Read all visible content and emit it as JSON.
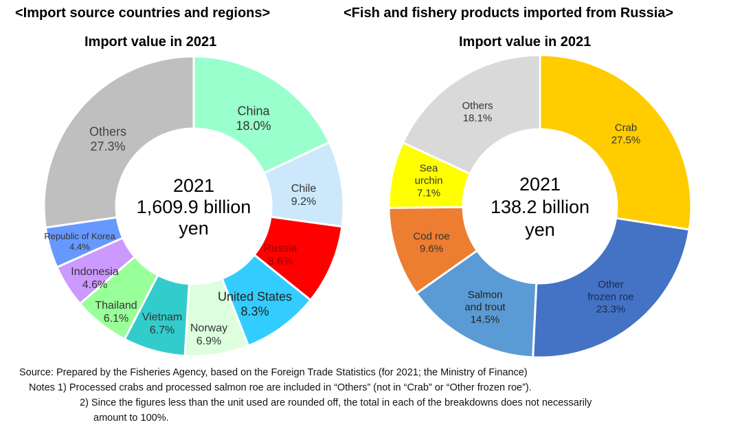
{
  "chart_data": [
    {
      "type": "pie",
      "donut": true,
      "title": "<Import source countries and regions>",
      "subtitle": "Import value in 2021",
      "center_label": [
        "2021",
        "1,609.9 billion",
        "yen"
      ],
      "slices": [
        {
          "label": "China",
          "value": 18.0,
          "value_label": "18.0%",
          "color": "#99FFCC"
        },
        {
          "label": "Chile",
          "value": 9.2,
          "value_label": "9.2%",
          "color": "#CCE8FA"
        },
        {
          "label": "Russia",
          "value": 8.6,
          "value_label": "8.6%",
          "color": "#FF0000"
        },
        {
          "label": "United States",
          "value": 8.3,
          "value_label": "8.3%",
          "color": "#33CCFF"
        },
        {
          "label": "Norway",
          "value": 6.9,
          "value_label": "6.9%",
          "color": "#DDFFDD"
        },
        {
          "label": "Vietnam",
          "value": 6.7,
          "value_label": "6.7%",
          "color": "#33CCCC"
        },
        {
          "label": "Thailand",
          "value": 6.1,
          "value_label": "6.1%",
          "color": "#99FF99"
        },
        {
          "label": "Indonesia",
          "value": 4.6,
          "value_label": "4.6%",
          "color": "#CC99FF"
        },
        {
          "label": "Republic of Korea",
          "value": 4.4,
          "value_label": "4.4%",
          "color": "#6699FF"
        },
        {
          "label": "Others",
          "value": 27.3,
          "value_label": "27.3%",
          "color": "#BFBFBF"
        }
      ]
    },
    {
      "type": "pie",
      "donut": true,
      "title": "<Fish and fishery products imported from Russia>",
      "subtitle": "Import value in 2021",
      "center_label": [
        "2021",
        "138.2 billion",
        "yen"
      ],
      "slices": [
        {
          "label": "Crab",
          "value": 27.5,
          "value_label": "27.5%",
          "color": "#FFCC00"
        },
        {
          "label": "Other frozen roe",
          "value": 23.3,
          "value_label": "23.3%",
          "color": "#4472C4"
        },
        {
          "label": "Salmon and trout",
          "value": 14.5,
          "value_label": "14.5%",
          "color": "#5B9BD5"
        },
        {
          "label": "Cod roe",
          "value": 9.6,
          "value_label": "9.6%",
          "color": "#ED7D31"
        },
        {
          "label": "Sea urchin",
          "value": 7.1,
          "value_label": "7.1%",
          "color": "#FFFF00"
        },
        {
          "label": "Others",
          "value": 18.1,
          "value_label": "18.1%",
          "color": "#D9D9D9"
        }
      ]
    }
  ],
  "notes": {
    "source": "Source: Prepared by the Fisheries Agency, based on the Foreign Trade Statistics (for 2021; the Ministry of Finance)",
    "note1": "Notes 1) Processed crabs and processed salmon roe are included in “Others” (not in “Crab” or “Other frozen roe”).",
    "note2a": "2) Since the figures less than the unit used are rounded off, the total in each of the breakdowns does not necessarily",
    "note2b": "amount to 100%."
  }
}
